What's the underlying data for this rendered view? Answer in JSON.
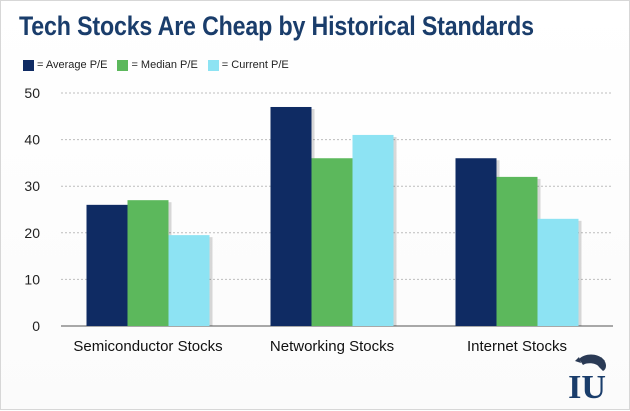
{
  "header": {
    "title": "Tech Stocks Are Cheap by Historical Standards"
  },
  "legend": {
    "items": [
      {
        "label": "= Average P/E",
        "color": "#0f2b63"
      },
      {
        "label": "= Median P/E",
        "color": "#5cb85c"
      },
      {
        "label": "= Current P/E",
        "color": "#8de3f3"
      }
    ]
  },
  "chart_data": {
    "type": "bar",
    "title": "Tech Stocks Are Cheap by Historical Standards",
    "categories": [
      "Semiconductor Stocks",
      "Networking Stocks",
      "Internet Stocks"
    ],
    "series": [
      {
        "name": "Average P/E",
        "color": "#0f2b63",
        "values": [
          26,
          47,
          36
        ]
      },
      {
        "name": "Median P/E",
        "color": "#5cb85c",
        "values": [
          27,
          36,
          32
        ]
      },
      {
        "name": "Current P/E",
        "color": "#8de3f3",
        "values": [
          19.5,
          41,
          23
        ]
      }
    ],
    "yticks": [
      0,
      10,
      20,
      30,
      40,
      50
    ],
    "ylim": [
      0,
      50
    ],
    "xlabel": "",
    "ylabel": "",
    "grid": true,
    "legend_position": "top-left"
  },
  "logo": {
    "text": "IU"
  }
}
